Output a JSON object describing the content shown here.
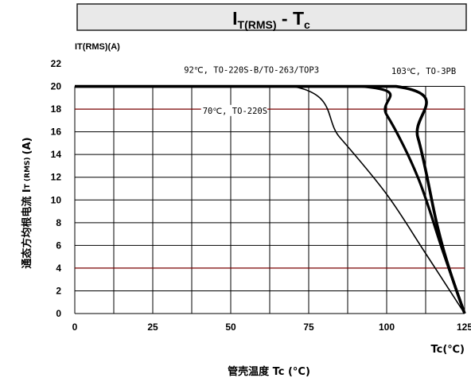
{
  "chart_data": {
    "type": "line",
    "title_main": "I",
    "title_sub": "T(RMS)",
    "title_sep": " - ",
    "title_main2": "T",
    "title_sub2": "c",
    "y_unit_label": "IT(RMS)(A)",
    "ylabel_main": "通态方均根电流 I",
    "ylabel_sub": "T (RMS)",
    "ylabel_unit": "(A)",
    "x_unit_label": "Tc(℃)",
    "xlabel": "管壳温度 Tc (°C)",
    "xlim": [
      0,
      125
    ],
    "ylim": [
      0,
      22
    ],
    "xticks": [
      0,
      25,
      50,
      75,
      100,
      125
    ],
    "yticks": [
      0,
      2,
      4,
      6,
      8,
      10,
      12,
      14,
      16,
      18,
      20,
      22
    ],
    "grid": true,
    "series": [
      {
        "name": "70℃, TO-220S",
        "line_width": 1.6,
        "points": [
          [
            0,
            20
          ],
          [
            70,
            20
          ],
          [
            85,
            15.5
          ],
          [
            100,
            10.5
          ],
          [
            112,
            5.5
          ],
          [
            125,
            0
          ]
        ]
      },
      {
        "name": "92℃, TO-220S-B/TO-263/TOP3",
        "line_width": 3.2,
        "points": [
          [
            0,
            20
          ],
          [
            92,
            20
          ],
          [
            100,
            17.5
          ],
          [
            110,
            12
          ],
          [
            118,
            5.5
          ],
          [
            125,
            0
          ]
        ]
      },
      {
        "name": "103℃, TO-3PB",
        "line_width": 3.6,
        "points": [
          [
            0,
            20
          ],
          [
            103,
            20
          ],
          [
            110,
            15.5
          ],
          [
            116,
            8
          ],
          [
            120,
            4
          ],
          [
            125,
            0
          ]
        ]
      }
    ],
    "annotations": [
      {
        "text": "92℃, TO-220S-B/TO-263/TOP3",
        "x": 35,
        "y": 21.2
      },
      {
        "text": "103℃, TO-3PB",
        "x": 101.5,
        "y": 21.1
      },
      {
        "text": "70℃, TO-220S",
        "x": 41,
        "y": 17.6
      }
    ],
    "colors": {
      "line": "#000000",
      "grid": "#000000",
      "grid_highlight": "#7a0000",
      "title_bg": "#e9e9e9"
    }
  }
}
